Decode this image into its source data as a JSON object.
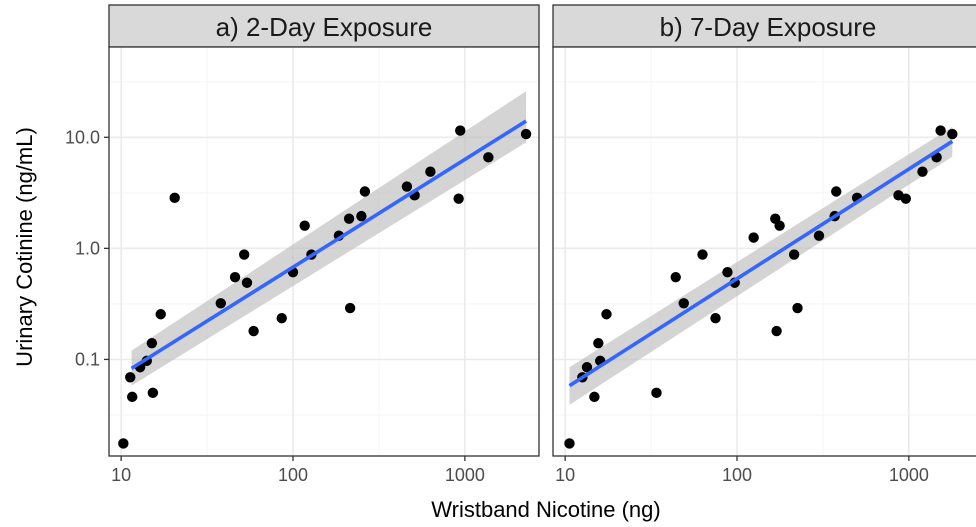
{
  "chart_data": [
    {
      "type": "scatter",
      "title": "a) 2-Day Exposure",
      "xlabel": "Wristband Nicotine (ng)",
      "ylabel": "Urinary Cotinine (ng/mL)",
      "x_scale": "log10",
      "y_scale": "log10",
      "xlim": [
        8.5,
        2700
      ],
      "ylim": [
        0.0135,
        65
      ],
      "x_ticks": [
        10,
        100,
        1000
      ],
      "x_tick_labels": [
        "10",
        "100",
        "1000"
      ],
      "y_ticks": [
        0.1,
        1.0,
        10.0
      ],
      "y_tick_labels": [
        "0.1",
        "1.0",
        "10.0"
      ],
      "grid": true,
      "points": {
        "x": [
          10.3,
          11.3,
          11.6,
          12.9,
          14.1,
          15.1,
          15.3,
          17.0,
          20.5,
          38.0,
          46.0,
          52.0,
          54.0,
          59.0,
          86.0,
          100.0,
          117.0,
          128.0,
          185.0,
          212.0,
          215.0,
          250.0,
          262.0,
          460.0,
          510.0,
          630.0,
          920.0,
          940.0,
          1370.0,
          2270.0
        ],
        "y": [
          0.0175,
          0.069,
          0.046,
          0.085,
          0.097,
          0.14,
          0.05,
          0.255,
          2.85,
          0.32,
          0.55,
          0.88,
          0.49,
          0.18,
          0.235,
          0.61,
          1.6,
          0.88,
          1.3,
          1.85,
          0.29,
          1.95,
          3.25,
          3.6,
          3.0,
          4.9,
          2.8,
          11.5,
          6.6,
          10.7
        ]
      },
      "fit": {
        "x": [
          11.5,
          2270
        ],
        "y": [
          0.083,
          14.0
        ],
        "method": "lm",
        "ci_band": true,
        "ci_lower": [
          0.058,
          9.0
        ],
        "ci_upper": [
          0.12,
          26.0
        ]
      }
    },
    {
      "type": "scatter",
      "title": "b) 7-Day Exposure",
      "xlabel": "Wristband Nicotine (ng)",
      "ylabel": "Urinary Cotinine (ng/mL)",
      "x_scale": "log10",
      "y_scale": "log10",
      "xlim": [
        8.5,
        2700
      ],
      "ylim": [
        0.0135,
        65
      ],
      "x_ticks": [
        10,
        100,
        1000
      ],
      "x_tick_labels": [
        "10",
        "100",
        "1000"
      ],
      "y_ticks": [
        0.1,
        1.0,
        10.0
      ],
      "y_tick_labels": [
        "0.1",
        "1.0",
        "10.0"
      ],
      "grid": true,
      "points": {
        "x": [
          10.6,
          12.6,
          13.4,
          14.8,
          15.6,
          16.0,
          17.4,
          34.0,
          44.0,
          49.0,
          63.0,
          75.0,
          88.0,
          97.0,
          125.0,
          167.0,
          170.0,
          177.0,
          215.0,
          225.0,
          300.0,
          370.0,
          378.0,
          500.0,
          870.0,
          960.0,
          1200.0,
          1450.0,
          1530.0,
          1790.0
        ],
        "y": [
          0.0175,
          0.069,
          0.085,
          0.046,
          0.14,
          0.097,
          0.255,
          0.05,
          0.55,
          0.32,
          0.88,
          0.235,
          0.61,
          0.49,
          1.25,
          1.85,
          0.18,
          1.6,
          0.88,
          0.29,
          1.3,
          1.95,
          3.25,
          2.85,
          3.0,
          2.8,
          4.9,
          6.6,
          11.5,
          10.7
        ]
      },
      "fit": {
        "x": [
          10.6,
          1790
        ],
        "y": [
          0.058,
          9.2
        ],
        "method": "lm",
        "ci_band": true,
        "ci_lower": [
          0.039,
          6.7
        ],
        "ci_upper": [
          0.085,
          12.4
        ]
      }
    }
  ],
  "colors": {
    "point": "#000000",
    "fit_line": "#3366ff",
    "ci_band": "#bdbdbd",
    "strip_bg": "#d9d9d9",
    "panel_border": "#333333",
    "grid_major": "#ebebeb",
    "grid_minor": "#f5f5f5",
    "tick_text": "#4d4d4d"
  }
}
